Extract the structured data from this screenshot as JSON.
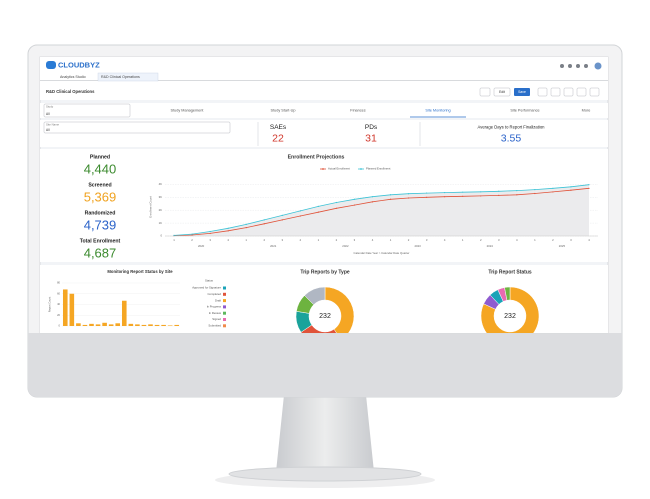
{
  "header": {
    "logo": "CLOUDBYZ",
    "tabs": [
      "Analytics Studio",
      "R&D Clinical Operations"
    ]
  },
  "toolbar": {
    "title": "R&D Clinical Operations",
    "edit": "Edit",
    "save": "Save"
  },
  "nav": {
    "tabs": [
      "Study Management",
      "Study Start-Up",
      "Finances",
      "Site Monitoring",
      "Site Performance",
      "More"
    ],
    "active": 3
  },
  "filters": [
    {
      "label": "Study",
      "value": "All"
    },
    {
      "label": "Site Name",
      "value": "All"
    }
  ],
  "kpis": [
    {
      "label": "SAEs",
      "value": "22",
      "color": "#d0362b"
    },
    {
      "label": "PDs",
      "value": "31",
      "color": "#d0362b"
    },
    {
      "label": "Average Days to Report Finalization",
      "value": "3.55",
      "color": "#2a62c9"
    }
  ],
  "enrollment_kpis": [
    {
      "label": "Planned",
      "value": "4,440",
      "color": "#3b8a2e"
    },
    {
      "label": "Screened",
      "value": "5,369",
      "color": "#f0a21f"
    },
    {
      "label": "Randomized",
      "value": "4,739",
      "color": "#2a62c9"
    },
    {
      "label": "Total Enrollment",
      "value": "4,687",
      "color": "#3b8a2e"
    }
  ],
  "enrollment_chart": {
    "type": "line",
    "title": "Enrollment Projections",
    "x_label": "Calendar Date Year > Calendar Date Quarter",
    "y_label": "Enrollment Count",
    "quarters": [
      "1",
      "2",
      "3",
      "4",
      "1",
      "2",
      "3",
      "4",
      "1",
      "2",
      "3",
      "4",
      "1",
      "2",
      "3",
      "4",
      "1",
      "2",
      "3",
      "4",
      "1",
      "2",
      "3",
      "4"
    ],
    "years": [
      "2020",
      "2021",
      "2022",
      "2023",
      "2024",
      "2025"
    ],
    "ylim": [
      0,
      4500
    ],
    "yticks": [
      0,
      {
        "value": 1000,
        "label": "1K"
      },
      {
        "value": 2000,
        "label": "2K"
      },
      {
        "value": 3000,
        "label": "3K"
      },
      {
        "value": 4000,
        "label": "4K"
      }
    ],
    "series": [
      {
        "name": "Actual Enrollment",
        "color": "#e0533a",
        "values": [
          30,
          80,
          200,
          400,
          650,
          950,
          1250,
          1550,
          1850,
          2150,
          2400,
          2650,
          2850,
          2950,
          3000,
          3050,
          3080,
          3110,
          3150,
          3200,
          3300,
          3420,
          3550,
          3700
        ]
      },
      {
        "name": "Planned Enrollment",
        "color": "#3cc3d6",
        "values": [
          50,
          150,
          350,
          600,
          900,
          1250,
          1600,
          1950,
          2300,
          2600,
          2850,
          3050,
          3200,
          3280,
          3330,
          3370,
          3400,
          3430,
          3470,
          3520,
          3600,
          3700,
          3820,
          3980
        ]
      }
    ]
  },
  "monitoring_chart": {
    "type": "bar",
    "title": "Monitoring Report Status by Site",
    "y_label": "Report Count",
    "legend_title": "Status",
    "legend": [
      {
        "name": "Approved for Signature",
        "color": "#1aa3b8"
      },
      {
        "name": "Completed",
        "color": "#e0533a"
      },
      {
        "name": "Draft",
        "color": "#f5a623"
      },
      {
        "name": "In Progress",
        "color": "#8e5bd0"
      },
      {
        "name": "In Review",
        "color": "#5cb85c"
      },
      {
        "name": "Signed",
        "color": "#e86ab0"
      },
      {
        "name": "Submitted",
        "color": "#f08a4b"
      }
    ],
    "color": "#f5a623",
    "values": [
      68,
      60,
      5,
      2,
      4,
      3,
      6,
      3,
      5,
      47,
      4,
      3,
      2,
      3,
      2,
      2,
      1,
      2
    ],
    "ylim": [
      0,
      80
    ],
    "yticks": [
      0,
      20,
      40,
      60,
      80
    ]
  },
  "trip_type_chart": {
    "type": "pie",
    "title": "Trip Reports by Type",
    "center_label": "232",
    "values": [
      94,
      58,
      28,
      23,
      29
    ],
    "colors": [
      "#f5a623",
      "#e0533a",
      "#1aa39b",
      "#6db33f",
      "#b0b7c3"
    ]
  },
  "trip_status_chart": {
    "type": "pie",
    "title": "Trip Report Status",
    "center_label": "232",
    "values": [
      190,
      14,
      12,
      9,
      7
    ],
    "colors": [
      "#f5a623",
      "#8e5bd0",
      "#1aa3b8",
      "#e86ab0",
      "#6db33f"
    ]
  }
}
